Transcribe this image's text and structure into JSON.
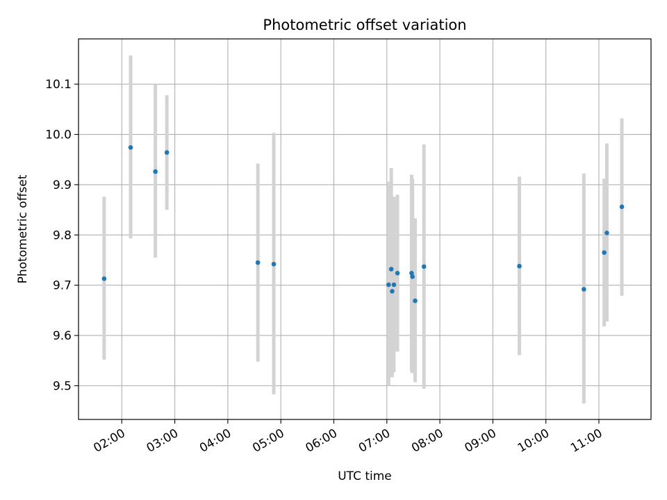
{
  "chart_data": {
    "type": "scatter",
    "title": "Photometric offset variation",
    "xlabel": "UTC time",
    "ylabel": "Photometric offset",
    "x_tick_labels": [
      "02:00",
      "03:00",
      "04:00",
      "05:00",
      "06:00",
      "07:00",
      "08:00",
      "09:00",
      "10:00",
      "11:00"
    ],
    "x_ticks": [
      "02:00",
      "03:00",
      "04:00",
      "05:00",
      "06:00",
      "07:00",
      "08:00",
      "09:00",
      "10:00",
      "11:00"
    ],
    "y_ticks": [
      9.5,
      9.6,
      9.7,
      9.8,
      9.9,
      10.0,
      10.1
    ],
    "y_tick_labels": [
      "9.5",
      "9.6",
      "9.7",
      "9.8",
      "9.9",
      "10.0",
      "10.1"
    ],
    "xlim": [
      "01:11",
      "11:59"
    ],
    "ylim": [
      9.433,
      10.19
    ],
    "grid": true,
    "point_color": "#1f77b4",
    "errorbar_color": "#d3d3d3",
    "points": [
      {
        "x": "01:40",
        "y": 9.713,
        "ylow": 9.552,
        "yhigh": 9.876
      },
      {
        "x": "02:10",
        "y": 9.974,
        "ylow": 9.793,
        "yhigh": 10.157
      },
      {
        "x": "02:38",
        "y": 9.926,
        "ylow": 9.755,
        "yhigh": 10.099
      },
      {
        "x": "02:51",
        "y": 9.964,
        "ylow": 9.85,
        "yhigh": 10.078
      },
      {
        "x": "04:34",
        "y": 9.745,
        "ylow": 9.548,
        "yhigh": 9.942
      },
      {
        "x": "04:52",
        "y": 9.742,
        "ylow": 9.483,
        "yhigh": 10.003
      },
      {
        "x": "07:02",
        "y": 9.701,
        "ylow": 9.5,
        "yhigh": 9.906
      },
      {
        "x": "07:05",
        "y": 9.732,
        "ylow": 9.518,
        "yhigh": 9.933
      },
      {
        "x": "07:06",
        "y": 9.688,
        "ylow": 9.517,
        "yhigh": 9.862
      },
      {
        "x": "07:08",
        "y": 9.701,
        "ylow": 9.527,
        "yhigh": 9.876
      },
      {
        "x": "07:12",
        "y": 9.724,
        "ylow": 9.568,
        "yhigh": 9.88
      },
      {
        "x": "07:28",
        "y": 9.724,
        "ylow": 9.528,
        "yhigh": 9.92
      },
      {
        "x": "07:29",
        "y": 9.717,
        "ylow": 9.525,
        "yhigh": 9.912
      },
      {
        "x": "07:32",
        "y": 9.669,
        "ylow": 9.507,
        "yhigh": 9.833
      },
      {
        "x": "07:42",
        "y": 9.737,
        "ylow": 9.494,
        "yhigh": 9.98
      },
      {
        "x": "09:30",
        "y": 9.738,
        "ylow": 9.561,
        "yhigh": 9.916
      },
      {
        "x": "10:43",
        "y": 9.692,
        "ylow": 9.465,
        "yhigh": 9.922
      },
      {
        "x": "11:06",
        "y": 9.765,
        "ylow": 9.618,
        "yhigh": 9.912
      },
      {
        "x": "11:09",
        "y": 9.804,
        "ylow": 9.628,
        "yhigh": 9.982
      },
      {
        "x": "11:26",
        "y": 9.856,
        "ylow": 9.679,
        "yhigh": 10.032
      }
    ]
  }
}
